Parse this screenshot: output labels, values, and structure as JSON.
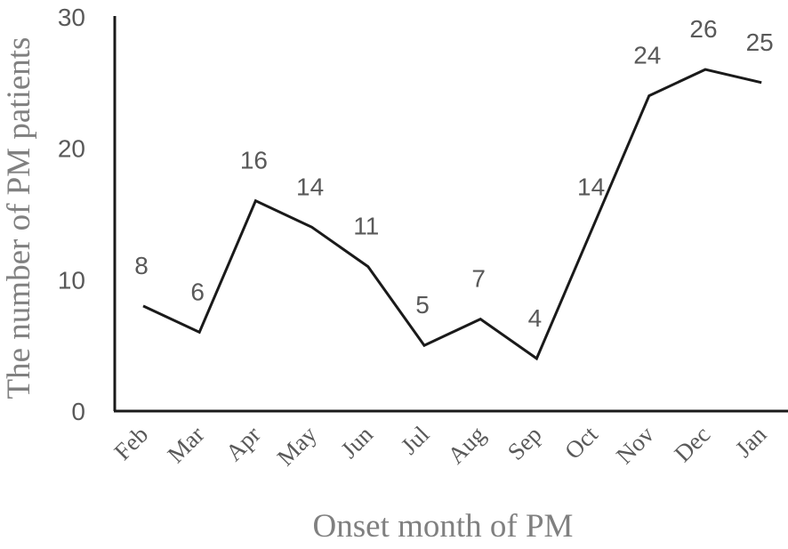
{
  "chart_data": {
    "type": "line",
    "title": "",
    "xlabel": "Onset month of PM",
    "ylabel": "The number of PM patients",
    "categories": [
      "Feb",
      "Mar",
      "Apr",
      "May",
      "Jun",
      "Jul",
      "Aug",
      "Sep",
      "Oct",
      "Nov",
      "Dec",
      "Jan"
    ],
    "series": [
      {
        "values": [
          8,
          6,
          16,
          14,
          11,
          5,
          7,
          4,
          14,
          24,
          26,
          25
        ]
      }
    ],
    "ylim": [
      0,
      30
    ],
    "yticks": [
      0,
      10,
      20,
      30
    ],
    "grid": false,
    "legend": "none",
    "colors": {
      "line": "#1a1a1a",
      "axis": "#1a1a1a",
      "text": "#595959",
      "axis_title": "#808080"
    }
  }
}
